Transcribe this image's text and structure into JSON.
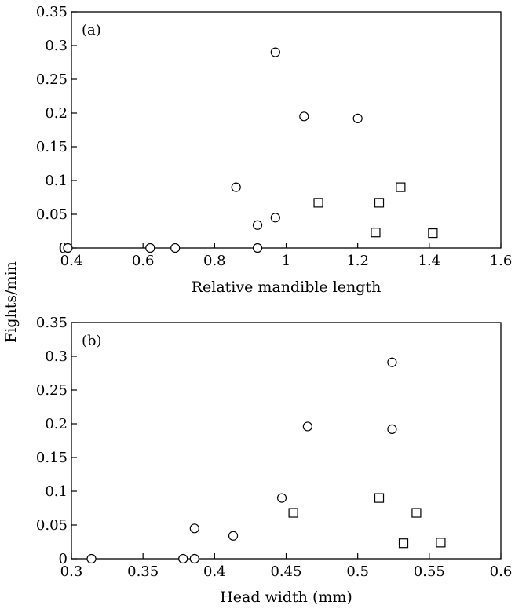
{
  "shared_ylabel": "Fights/min",
  "chart_data": [
    {
      "type": "scatter",
      "panel_label": "(a)",
      "xlabel": "Relative mandible length",
      "ylabel": "Fights/min",
      "xlim": [
        0.4,
        1.6
      ],
      "ylim": [
        0,
        0.35
      ],
      "xticks": [
        "0.4",
        "0.6",
        "0.8",
        "1",
        "1.2",
        "1.4",
        "1.6"
      ],
      "yticks": [
        "0",
        "0.05",
        "0.1",
        "0.15",
        "0.2",
        "0.25",
        "0.3",
        "0.35"
      ],
      "grid": false,
      "series": [
        {
          "marker": "circle",
          "points": [
            {
              "x": 0.39,
              "y": 0
            },
            {
              "x": 0.62,
              "y": 0
            },
            {
              "x": 0.69,
              "y": 0
            },
            {
              "x": 0.86,
              "y": 0.09
            },
            {
              "x": 0.92,
              "y": 0.034
            },
            {
              "x": 0.92,
              "y": 0
            },
            {
              "x": 0.97,
              "y": 0.045
            },
            {
              "x": 0.97,
              "y": 0.29
            },
            {
              "x": 1.05,
              "y": 0.195
            },
            {
              "x": 1.2,
              "y": 0.192
            }
          ]
        },
        {
          "marker": "square",
          "points": [
            {
              "x": 1.09,
              "y": 0.067
            },
            {
              "x": 1.25,
              "y": 0.023
            },
            {
              "x": 1.26,
              "y": 0.067
            },
            {
              "x": 1.32,
              "y": 0.09
            },
            {
              "x": 1.41,
              "y": 0.022
            }
          ]
        }
      ]
    },
    {
      "type": "scatter",
      "panel_label": "(b)",
      "xlabel": "Head width (mm)",
      "ylabel": "Fights/min",
      "xlim": [
        0.3,
        0.6
      ],
      "ylim": [
        0,
        0.35
      ],
      "xticks": [
        "0.3",
        "0.35",
        "0.4",
        "0.45",
        "0.5",
        "0.55",
        "0.6"
      ],
      "yticks": [
        "0",
        "0.05",
        "0.1",
        "0.15",
        "0.2",
        "0.25",
        "0.3",
        "0.35"
      ],
      "grid": false,
      "series": [
        {
          "marker": "circle",
          "points": [
            {
              "x": 0.314,
              "y": 0
            },
            {
              "x": 0.378,
              "y": 0
            },
            {
              "x": 0.386,
              "y": 0
            },
            {
              "x": 0.386,
              "y": 0.045
            },
            {
              "x": 0.413,
              "y": 0.034
            },
            {
              "x": 0.447,
              "y": 0.09
            },
            {
              "x": 0.465,
              "y": 0.196
            },
            {
              "x": 0.524,
              "y": 0.291
            },
            {
              "x": 0.524,
              "y": 0.192
            }
          ]
        },
        {
          "marker": "square",
          "points": [
            {
              "x": 0.455,
              "y": 0.068
            },
            {
              "x": 0.515,
              "y": 0.09
            },
            {
              "x": 0.532,
              "y": 0.023
            },
            {
              "x": 0.541,
              "y": 0.068
            },
            {
              "x": 0.558,
              "y": 0.024
            }
          ]
        }
      ]
    }
  ]
}
